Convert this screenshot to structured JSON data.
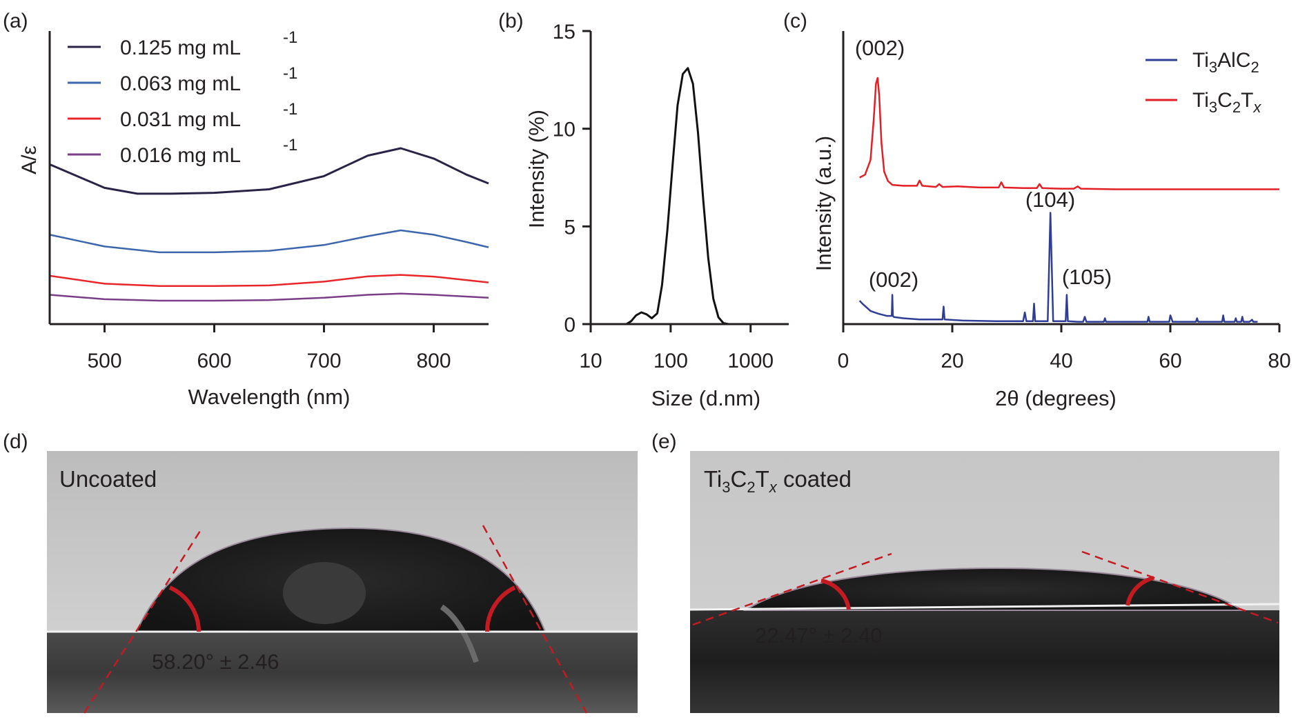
{
  "colors": {
    "axis": "#231f20",
    "s0125": "#2b2346",
    "s0063": "#3b66ac",
    "s0031": "#e8262a",
    "s0016": "#7a3d87",
    "red": "#e31e24",
    "blue": "#2e3d96",
    "dls": "#111111",
    "photo_red": "#c41a22",
    "photo_text": "#333333",
    "photo_label_red": "#d92a2a",
    "white": "#ffffff"
  },
  "panels": {
    "a": {
      "label": "(a)"
    },
    "b": {
      "label": "(b)"
    },
    "c": {
      "label": "(c)"
    },
    "d": {
      "label": "(d)",
      "caption": "Uncoated",
      "angle": "58.20° ± 2.46"
    },
    "e": {
      "label": "(e)",
      "caption_parts": [
        "Ti",
        "3",
        "C",
        "2",
        "T",
        "x",
        " coated"
      ],
      "angle": "22.47° ± 2.40"
    }
  },
  "chart_data": [
    {
      "panel": "a",
      "type": "line",
      "xlabel": "Wavelength (nm)",
      "ylabel": "A/ε",
      "xlim": [
        450,
        850
      ],
      "xticks": [
        500,
        600,
        700,
        800
      ],
      "yticks": [],
      "legend_position": "top-left",
      "legend": [
        {
          "text": "0.125 mg mL",
          "sup": "-1"
        },
        {
          "text": "0.063 mg mL",
          "sup": "-1"
        },
        {
          "text": "0.031 mg mL",
          "sup": "-1"
        },
        {
          "text": "0.016 mg mL",
          "sup": "-1"
        }
      ],
      "series": [
        {
          "name": "0.125 mg mL-1",
          "color_key": "s0125",
          "x": [
            450,
            500,
            530,
            560,
            600,
            650,
            700,
            740,
            770,
            800,
            830,
            850
          ],
          "y": [
            0.545,
            0.465,
            0.445,
            0.445,
            0.448,
            0.46,
            0.505,
            0.575,
            0.6,
            0.565,
            0.51,
            0.48
          ]
        },
        {
          "name": "0.063 mg mL-1",
          "color_key": "s0063",
          "x": [
            450,
            500,
            550,
            600,
            650,
            700,
            740,
            770,
            800,
            830,
            850
          ],
          "y": [
            0.305,
            0.265,
            0.245,
            0.245,
            0.25,
            0.27,
            0.3,
            0.32,
            0.305,
            0.28,
            0.262
          ]
        },
        {
          "name": "0.031 mg mL-1",
          "color_key": "s0031",
          "x": [
            450,
            500,
            550,
            600,
            650,
            700,
            740,
            770,
            800,
            850
          ],
          "y": [
            0.165,
            0.138,
            0.13,
            0.13,
            0.132,
            0.145,
            0.163,
            0.168,
            0.162,
            0.142
          ]
        },
        {
          "name": "0.016 mg mL-1",
          "color_key": "s0016",
          "x": [
            450,
            500,
            550,
            600,
            650,
            700,
            740,
            770,
            800,
            850
          ],
          "y": [
            0.1,
            0.085,
            0.08,
            0.08,
            0.082,
            0.09,
            0.1,
            0.104,
            0.1,
            0.09
          ]
        }
      ]
    },
    {
      "panel": "b",
      "type": "line",
      "xlabel": "Size (d.nm)",
      "ylabel": "Intensity (%)",
      "xscale": "log",
      "xlim": [
        10,
        3000
      ],
      "ylim": [
        0,
        15
      ],
      "xticks": [
        10,
        100,
        1000
      ],
      "xtick_labels": [
        "10",
        "100",
        "1000"
      ],
      "yticks": [
        0,
        5,
        10,
        15
      ],
      "series": [
        {
          "name": "",
          "color_key": "dls",
          "x": [
            28,
            32,
            37,
            43,
            50,
            58,
            68,
            78,
            91,
            106,
            122,
            142,
            164,
            190,
            220,
            255,
            295,
            342,
            396,
            458,
            530
          ],
          "y": [
            0,
            0.15,
            0.45,
            0.6,
            0.5,
            0.3,
            0.55,
            2.0,
            4.8,
            8.2,
            11.2,
            12.8,
            13.1,
            12.3,
            9.8,
            6.4,
            3.4,
            1.3,
            0.35,
            0.05,
            0
          ]
        }
      ]
    },
    {
      "panel": "c",
      "type": "line",
      "xlabel": "2θ (degrees)",
      "ylabel": "Intensity (a.u.)",
      "xlim": [
        0,
        80
      ],
      "xticks": [
        0,
        20,
        40,
        60,
        80
      ],
      "yticks": [],
      "legend_position": "top-right",
      "legend": [
        {
          "parts": [
            "Ti",
            "3",
            "AlC",
            "2"
          ],
          "color_key": "blue"
        },
        {
          "parts": [
            "Ti",
            "3",
            "C",
            "2",
            "T",
            "x"
          ],
          "color_key": "red"
        }
      ],
      "series": [
        {
          "name": "Ti3AlC2",
          "color_key": "blue",
          "x": [
            3,
            3.5,
            5,
            6.5,
            8,
            8.9,
            9.0,
            9.1,
            9.3,
            11,
            14,
            18.2,
            18.4,
            18.6,
            22,
            28,
            33,
            33.3,
            33.6,
            34.8,
            35.0,
            35.2,
            36,
            37.5,
            38.0,
            38.5,
            39.5,
            40.8,
            41.0,
            41.2,
            43,
            44,
            44.3,
            44.6,
            47.8,
            48.0,
            48.2,
            52,
            55.8,
            56.0,
            56.2,
            59.8,
            60.0,
            60.2,
            60.4,
            64.7,
            64.9,
            65.1,
            69.5,
            69.7,
            69.9,
            71.8,
            72.0,
            72.2,
            73.0,
            73.2,
            73.4,
            74.5,
            75.0,
            75.2,
            75.4,
            76
          ],
          "y": [
            0.08,
            0.07,
            0.045,
            0.035,
            0.028,
            0.028,
            0.1,
            0.028,
            0.024,
            0.02,
            0.016,
            0.016,
            0.06,
            0.016,
            0.012,
            0.01,
            0.01,
            0.04,
            0.01,
            0.01,
            0.07,
            0.01,
            0.01,
            0.01,
            0.38,
            0.01,
            0.01,
            0.01,
            0.1,
            0.01,
            0.008,
            0.008,
            0.025,
            0.008,
            0.008,
            0.02,
            0.008,
            0.008,
            0.008,
            0.025,
            0.008,
            0.008,
            0.03,
            0.02,
            0.008,
            0.008,
            0.02,
            0.008,
            0.008,
            0.03,
            0.008,
            0.008,
            0.02,
            0.008,
            0.008,
            0.025,
            0.008,
            0.008,
            0.015,
            0.008,
            0.008,
            0.008
          ]
        },
        {
          "name": "Ti3C2Tx",
          "color_key": "red",
          "x": [
            3,
            4,
            5,
            5.6,
            6.0,
            6.3,
            6.6,
            7.0,
            7.5,
            8.2,
            9,
            11,
            13.5,
            14,
            14.5,
            17,
            17.6,
            18.2,
            21,
            25,
            28.5,
            29,
            29.5,
            33,
            35.5,
            36,
            36.5,
            40,
            42.3,
            43,
            43.6,
            50,
            60,
            70,
            80
          ],
          "y": [
            0.5,
            0.51,
            0.56,
            0.7,
            0.82,
            0.84,
            0.78,
            0.62,
            0.52,
            0.488,
            0.475,
            0.472,
            0.472,
            0.49,
            0.472,
            0.468,
            0.478,
            0.468,
            0.47,
            0.466,
            0.466,
            0.484,
            0.466,
            0.464,
            0.464,
            0.478,
            0.464,
            0.462,
            0.462,
            0.47,
            0.462,
            0.46,
            0.46,
            0.46,
            0.46
          ]
        }
      ],
      "annotations": [
        {
          "text": "(002)",
          "x": 6.5,
          "series": "Ti3C2Tx",
          "color_key": "red"
        },
        {
          "text": "(104)",
          "x": 38,
          "series": "Ti3AlC2",
          "color_key": "blue"
        },
        {
          "text": "(002)",
          "x": 9,
          "series": "Ti3AlC2",
          "color_key": "blue"
        },
        {
          "text": "(105)",
          "x": 44,
          "series": "Ti3AlC2",
          "color_key": "blue"
        }
      ]
    }
  ]
}
